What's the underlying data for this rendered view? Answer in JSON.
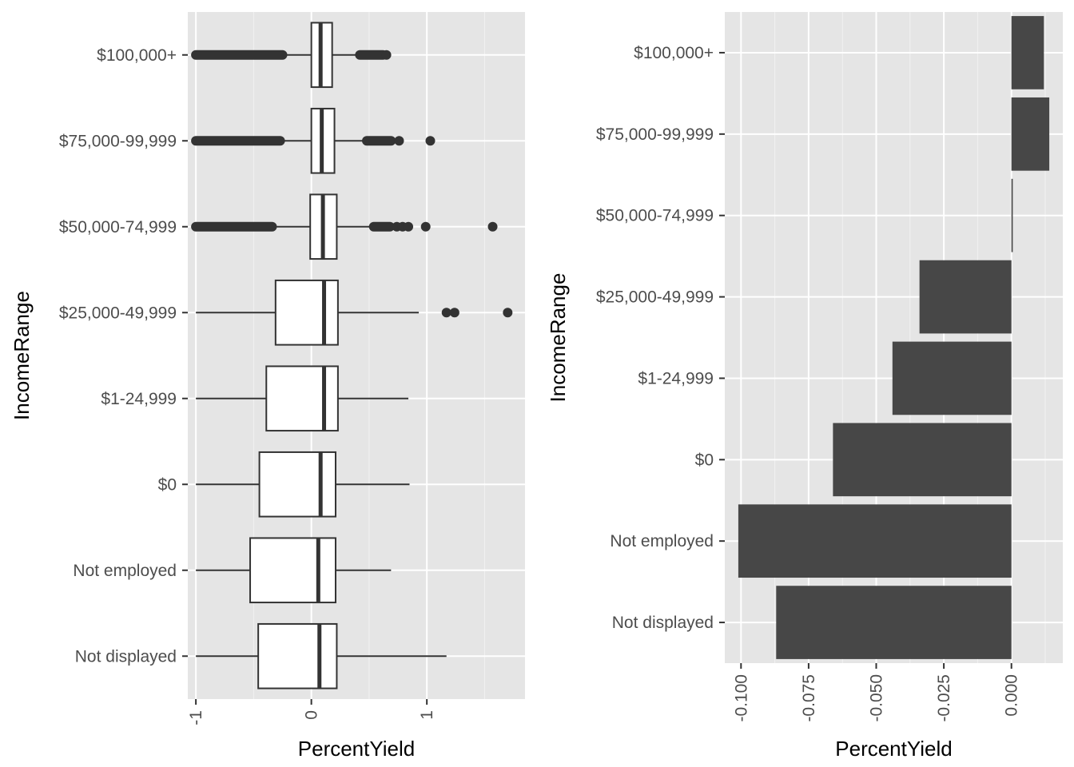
{
  "colors": {
    "panel_background": "#e5e5e5",
    "grid_major": "#ffffff",
    "grid_minor": "#f2f2f2",
    "box_fill": "#ffffff",
    "box_line": "#333333",
    "bar_fill": "#474747",
    "tick_text": "#4d4d4d"
  },
  "chart_data": [
    {
      "type": "boxplot",
      "orientation": "horizontal",
      "title": "",
      "xlabel": "PercentYield",
      "ylabel": "IncomeRange",
      "xlim": [
        -1.07,
        1.85
      ],
      "x_ticks": [
        -1,
        0,
        1
      ],
      "x_tick_labels": [
        "-1",
        "0",
        "1"
      ],
      "grid": true,
      "categories": [
        "Not displayed",
        "Not employed",
        "$0",
        "$1-24,999",
        "$25,000-49,999",
        "$50,000-74,999",
        "$75,000-99,999",
        "$100,000+"
      ],
      "boxes": [
        {
          "category": "Not displayed",
          "whisker_low": -1.0,
          "q1": -0.46,
          "median": 0.07,
          "q3": 0.22,
          "whisker_high": 1.17,
          "outlier_runs": [],
          "outliers": []
        },
        {
          "category": "Not employed",
          "whisker_low": -1.0,
          "q1": -0.53,
          "median": 0.06,
          "q3": 0.21,
          "whisker_high": 0.69,
          "outlier_runs": [],
          "outliers": []
        },
        {
          "category": "$0",
          "whisker_low": -1.0,
          "q1": -0.45,
          "median": 0.08,
          "q3": 0.21,
          "whisker_high": 0.85,
          "outlier_runs": [],
          "outliers": []
        },
        {
          "category": "$1-24,999",
          "whisker_low": -1.0,
          "q1": -0.39,
          "median": 0.11,
          "q3": 0.23,
          "whisker_high": 0.84,
          "outlier_runs": [],
          "outliers": []
        },
        {
          "category": "$25,000-49,999",
          "whisker_low": -1.0,
          "q1": -0.31,
          "median": 0.11,
          "q3": 0.23,
          "whisker_high": 0.93,
          "outlier_runs": [],
          "outliers": [
            1.17,
            1.24,
            1.7
          ]
        },
        {
          "category": "$50,000-74,999",
          "whisker_low": -0.34,
          "q1": -0.01,
          "median": 0.1,
          "q3": 0.22,
          "whisker_high": 0.54,
          "outlier_runs": [
            [
              -1.0,
              -0.34
            ],
            [
              0.54,
              0.68
            ]
          ],
          "outliers": [
            0.74,
            0.79,
            0.84,
            0.99,
            1.57
          ]
        },
        {
          "category": "$75,000-99,999",
          "whisker_low": -0.27,
          "q1": 0.0,
          "median": 0.09,
          "q3": 0.2,
          "whisker_high": 0.48,
          "outlier_runs": [
            [
              -1.0,
              -0.27
            ],
            [
              0.48,
              0.69
            ]
          ],
          "outliers": [
            0.76,
            1.03
          ]
        },
        {
          "category": "$100,000+",
          "whisker_low": -0.25,
          "q1": 0.0,
          "median": 0.08,
          "q3": 0.18,
          "whisker_high": 0.42,
          "outlier_runs": [
            [
              -1.0,
              -0.25
            ],
            [
              0.42,
              0.62
            ]
          ],
          "outliers": [
            0.65
          ]
        }
      ]
    },
    {
      "type": "bar",
      "orientation": "horizontal",
      "title": "",
      "xlabel": "PercentYield",
      "ylabel": "IncomeRange",
      "xlim": [
        -0.106,
        0.019
      ],
      "x_ticks": [
        -0.1,
        -0.075,
        -0.05,
        -0.025,
        0.0
      ],
      "x_tick_labels": [
        "-0.100",
        "-0.075",
        "-0.050",
        "-0.025",
        "0.000"
      ],
      "grid": true,
      "categories": [
        "Not displayed",
        "Not employed",
        "$0",
        "$1-24,999",
        "$25,000-49,999",
        "$50,000-74,999",
        "$75,000-99,999",
        "$100,000+"
      ],
      "values": [
        -0.087,
        -0.101,
        -0.066,
        -0.044,
        -0.034,
        0.0005,
        0.014,
        0.012
      ]
    }
  ]
}
